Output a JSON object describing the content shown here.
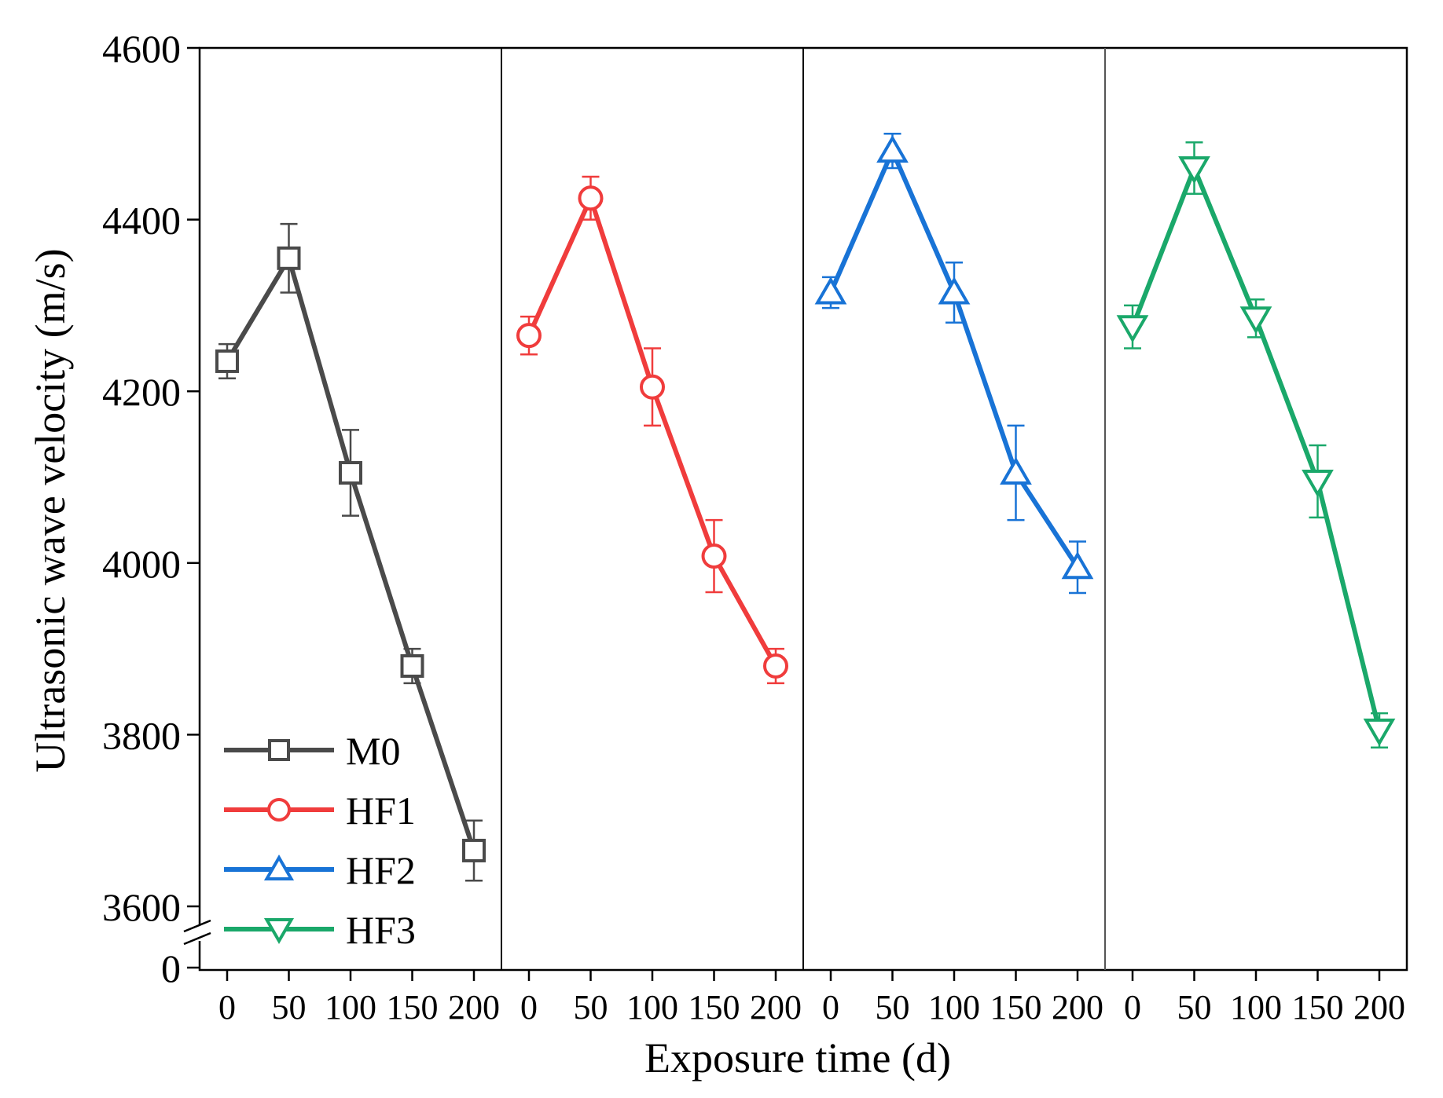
{
  "chart_data": {
    "type": "line",
    "xlabel": "Exposure time (d)",
    "ylabel": "Ultrasonic wave velocity (m/s)",
    "ylim": [
      3600,
      4600
    ],
    "y_axis_break": true,
    "y_ticks": [
      "4600",
      "4400",
      "4200",
      "4000",
      "3800",
      "3600",
      "0"
    ],
    "x_tick_labels": [
      "0",
      "50",
      "100",
      "150",
      "200"
    ],
    "x": [
      0,
      50,
      100,
      150,
      200
    ],
    "legend_position": "bottom-left",
    "grid": false,
    "series": [
      {
        "name": "M0",
        "color": "#4a4a4a",
        "marker": "square",
        "values": [
          4235,
          4355,
          4105,
          3880,
          3665
        ],
        "errors": [
          20,
          40,
          50,
          20,
          35
        ]
      },
      {
        "name": "HF1",
        "color": "#f03c3c",
        "marker": "circle",
        "values": [
          4265,
          4425,
          4205,
          4008,
          3880
        ],
        "errors": [
          22,
          25,
          45,
          42,
          20
        ]
      },
      {
        "name": "HF2",
        "color": "#1873d6",
        "marker": "triangle-up",
        "values": [
          4315,
          4480,
          4315,
          4105,
          3995
        ],
        "errors": [
          18,
          20,
          35,
          55,
          30
        ]
      },
      {
        "name": "HF3",
        "color": "#1aa86a",
        "marker": "triangle-down",
        "values": [
          4275,
          4460,
          4285,
          4095,
          3805
        ],
        "errors": [
          25,
          30,
          22,
          42,
          20
        ]
      }
    ]
  }
}
